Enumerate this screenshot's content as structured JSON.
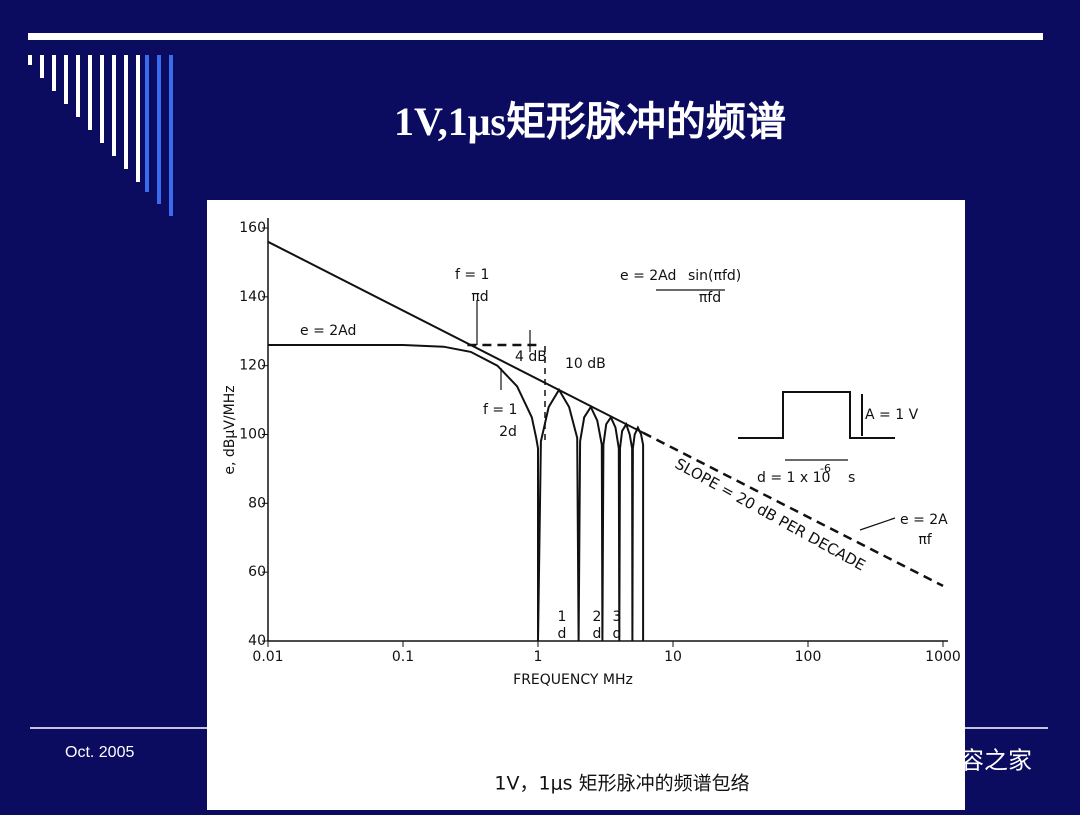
{
  "header": {
    "title": "1V,1μs矩形脉冲的频谱"
  },
  "footer": {
    "date": "Oct. 2005",
    "watermark": "电磁兼容之家"
  },
  "chart_data": {
    "type": "line",
    "caption": "1V，1μs 矩形脉冲的频谱包络",
    "x_label": "FREQUENCY MHz",
    "y_label": "e, dBμV/MHz",
    "x_scale": "log",
    "xlim": [
      0.01,
      1000
    ],
    "xticks": [
      0.01,
      0.1,
      1,
      10,
      100,
      1000
    ],
    "ylim": [
      40,
      160
    ],
    "yticks": [
      40,
      60,
      80,
      100,
      120,
      140,
      160
    ],
    "grid": false,
    "series": [
      {
        "color": "#111111",
        "dash": false,
        "x": [
          0.01,
          0.1,
          0.2,
          0.318,
          0.5,
          0.7,
          0.9,
          0.97,
          1,
          1,
          1.05,
          1.2,
          1.43,
          1.7,
          1.95,
          2,
          2,
          2.05,
          2.2,
          2.46,
          2.75,
          2.97,
          3,
          3,
          3.05,
          3.2,
          3.47,
          3.75,
          3.97,
          4,
          4,
          4.05,
          4.2,
          4.5,
          4.78,
          4.98,
          5,
          5,
          5.05,
          5.2,
          5.5,
          5.8,
          6,
          6
        ],
        "values": [
          126,
          126,
          125.5,
          124,
          120,
          114,
          105,
          99,
          96,
          40,
          98,
          108,
          113,
          108,
          99,
          40,
          40,
          98,
          105,
          108,
          104,
          97,
          40,
          40,
          97,
          103,
          105,
          102,
          96,
          40,
          40,
          96,
          101,
          103,
          100,
          96,
          40,
          40,
          96,
          100,
          102,
          100,
          97,
          40
        ]
      },
      {
        "color": "#111111",
        "dash": false,
        "x": [
          0.01,
          6
        ],
        "values": [
          156,
          100.5
        ]
      },
      {
        "color": "#111111",
        "dash": true,
        "x": [
          6,
          1000
        ],
        "values": [
          100.5,
          56
        ]
      },
      {
        "color": "#111111",
        "dash": true,
        "x": [
          0.3,
          1.05
        ],
        "values": [
          126,
          126
        ]
      }
    ],
    "annotations": [
      "e = 2Ad",
      "f = 1",
      "πd",
      "4 dB",
      "10 dB",
      "f = 1",
      "2d",
      "e = 2Ad",
      "sin(πfd)",
      "πfd",
      "A = 1 V",
      "d = 1 x 10",
      "-6",
      "s",
      "SLOPE = 20 dB PER DECADE",
      "e = 2A",
      "πf",
      "1",
      "d",
      "2",
      "d",
      "3",
      "d"
    ]
  }
}
